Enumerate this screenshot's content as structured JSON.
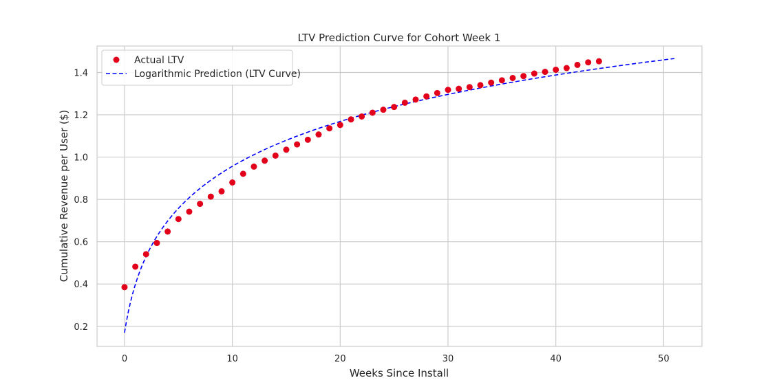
{
  "chart_data": {
    "type": "scatter",
    "title": "LTV Prediction Curve for Cohort Week 1",
    "xlabel": "Weeks Since Install",
    "ylabel": "Cumulative Revenue per User ($)",
    "xlim": [
      -2.55,
      53.55
    ],
    "ylim": [
      0.105,
      1.525
    ],
    "x_ticks": [
      0,
      10,
      20,
      30,
      40,
      50
    ],
    "y_ticks": [
      0.2,
      0.4,
      0.6,
      0.8,
      1.0,
      1.2,
      1.4
    ],
    "x_tick_labels": [
      "0",
      "10",
      "20",
      "30",
      "40",
      "50"
    ],
    "y_tick_labels": [
      "0.2",
      "0.4",
      "0.6",
      "0.8",
      "1.0",
      "1.2",
      "1.4"
    ],
    "grid": true,
    "legend_position": "top-left",
    "series": [
      {
        "name": "Actual LTV",
        "kind": "scatter",
        "color": "#e3001b",
        "x": [
          0,
          1,
          2,
          3,
          4,
          5,
          6,
          7,
          8,
          9,
          10,
          11,
          12,
          13,
          14,
          15,
          16,
          17,
          18,
          19,
          20,
          21,
          22,
          23,
          24,
          25,
          26,
          27,
          28,
          29,
          30,
          31,
          32,
          33,
          34,
          35,
          36,
          37,
          38,
          39,
          40,
          41,
          42,
          43,
          44
        ],
        "y": [
          0.385,
          0.482,
          0.541,
          0.594,
          0.648,
          0.707,
          0.742,
          0.779,
          0.813,
          0.838,
          0.88,
          0.921,
          0.955,
          0.983,
          1.007,
          1.035,
          1.06,
          1.082,
          1.107,
          1.136,
          1.152,
          1.178,
          1.192,
          1.21,
          1.224,
          1.237,
          1.257,
          1.272,
          1.287,
          1.303,
          1.318,
          1.323,
          1.331,
          1.34,
          1.352,
          1.363,
          1.374,
          1.383,
          1.395,
          1.403,
          1.413,
          1.421,
          1.436,
          1.448,
          1.453
        ]
      },
      {
        "name": "Logarithmic Prediction (LTV Curve)",
        "kind": "line",
        "style": "dashed",
        "color": "#0000ff",
        "equation": "y = 0.170 + 0.328 * ln(x + 1)",
        "a": 0.17,
        "b": 0.328,
        "x_range": [
          0,
          51
        ]
      }
    ]
  }
}
